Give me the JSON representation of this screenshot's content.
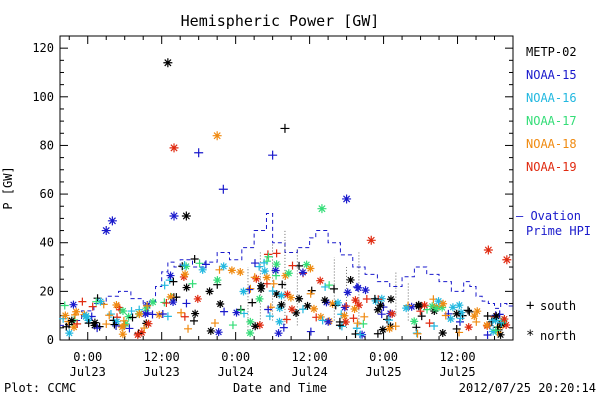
{
  "chart_data": {
    "type": "scatter",
    "title": "Hemispheric Power [GW]",
    "xlabel": "Date and Time",
    "ylabel": "P [GW]",
    "ylim": [
      0,
      125
    ],
    "y_ticks": [
      0,
      20,
      40,
      60,
      80,
      100,
      120
    ],
    "x_unit": "hours since Jul23 00:00",
    "xlim": [
      -4.5,
      69
    ],
    "x_ticks": [
      {
        "x": 0,
        "line1": "0:00",
        "line2": "Jul23"
      },
      {
        "x": 12,
        "line1": "12:00",
        "line2": "Jul23"
      },
      {
        "x": 24,
        "line1": "0:00",
        "line2": "Jul24"
      },
      {
        "x": 36,
        "line1": "12:00",
        "line2": "Jul24"
      },
      {
        "x": 48,
        "line1": "0:00",
        "line2": "Jul25"
      },
      {
        "x": 60,
        "line1": "12:00",
        "line2": "Jul25"
      }
    ],
    "legend_position": "right",
    "series": [
      {
        "name": "METP-02",
        "color": "#000000"
      },
      {
        "name": "NOAA-15",
        "color": "#1a1acc"
      },
      {
        "name": "NOAA-16",
        "color": "#22b8e0"
      },
      {
        "name": "NOAA-17",
        "color": "#33dd77"
      },
      {
        "name": "NOAA-18",
        "color": "#f08a10"
      },
      {
        "name": "NOAA-19",
        "color": "#e02a10"
      }
    ],
    "ovation": {
      "label_line1": "– Ovation",
      "label_line2": "Prime HPI",
      "color": "#1a1acc",
      "steps": [
        [
          -4.5,
          6
        ],
        [
          -3,
          8
        ],
        [
          -1,
          12
        ],
        [
          1,
          15
        ],
        [
          3,
          18
        ],
        [
          5,
          20
        ],
        [
          7,
          17
        ],
        [
          9,
          14
        ],
        [
          10,
          16
        ],
        [
          11,
          22
        ],
        [
          12,
          28
        ],
        [
          13,
          32
        ],
        [
          14,
          30
        ],
        [
          15,
          33
        ],
        [
          17,
          30
        ],
        [
          19,
          32
        ],
        [
          21,
          36
        ],
        [
          23,
          33
        ],
        [
          25,
          38
        ],
        [
          27,
          45
        ],
        [
          29,
          52
        ],
        [
          30,
          40
        ],
        [
          32,
          36
        ],
        [
          34,
          38
        ],
        [
          36,
          42
        ],
        [
          37,
          45
        ],
        [
          39,
          40
        ],
        [
          41,
          35
        ],
        [
          43,
          30
        ],
        [
          45,
          27
        ],
        [
          47,
          24
        ],
        [
          49,
          22
        ],
        [
          51,
          26
        ],
        [
          53,
          30
        ],
        [
          55,
          27
        ],
        [
          57,
          24
        ],
        [
          59,
          20
        ],
        [
          61,
          24
        ],
        [
          62,
          22
        ],
        [
          63,
          18
        ],
        [
          64,
          16
        ],
        [
          65,
          15
        ],
        [
          66,
          13
        ],
        [
          67,
          15
        ],
        [
          68,
          14
        ],
        [
          69,
          14
        ]
      ]
    },
    "notable_points": [
      {
        "x": 13,
        "y": 114,
        "symbol": "*",
        "series": "METP-02"
      },
      {
        "x": 32,
        "y": 87,
        "symbol": "+",
        "series": "METP-02"
      },
      {
        "x": 30,
        "y": 76,
        "symbol": "+",
        "series": "NOAA-15"
      },
      {
        "x": 18,
        "y": 77,
        "symbol": "+",
        "series": "NOAA-15"
      },
      {
        "x": 14,
        "y": 79,
        "symbol": "*",
        "series": "NOAA-19"
      },
      {
        "x": 21,
        "y": 84,
        "symbol": "*",
        "series": "NOAA-18"
      },
      {
        "x": 22,
        "y": 62,
        "symbol": "+",
        "series": "NOAA-15"
      },
      {
        "x": 42,
        "y": 58,
        "symbol": "*",
        "series": "NOAA-15"
      },
      {
        "x": 38,
        "y": 54,
        "symbol": "*",
        "series": "NOAA-17"
      },
      {
        "x": 14,
        "y": 51,
        "symbol": "*",
        "series": "NOAA-15"
      },
      {
        "x": 16,
        "y": 51,
        "symbol": "*",
        "series": "METP-02"
      },
      {
        "x": 4,
        "y": 49,
        "symbol": "*",
        "series": "NOAA-15"
      },
      {
        "x": 3,
        "y": 45,
        "symbol": "*",
        "series": "NOAA-15"
      },
      {
        "x": 46,
        "y": 41,
        "symbol": "*",
        "series": "NOAA-19"
      },
      {
        "x": 65,
        "y": 37,
        "symbol": "*",
        "series": "NOAA-19"
      },
      {
        "x": 68,
        "y": 33,
        "symbol": "*",
        "series": "NOAA-19"
      }
    ],
    "cloud": {
      "x_start": -4,
      "x_end": 68.5,
      "count": 300,
      "seed": 7,
      "envelope": [
        [
          -4,
          12
        ],
        [
          0,
          18
        ],
        [
          4,
          15
        ],
        [
          8,
          10
        ],
        [
          11,
          15
        ],
        [
          14,
          28
        ],
        [
          18,
          32
        ],
        [
          24,
          28
        ],
        [
          30,
          35
        ],
        [
          34,
          30
        ],
        [
          38,
          28
        ],
        [
          42,
          25
        ],
        [
          46,
          18
        ],
        [
          50,
          15
        ],
        [
          54,
          16
        ],
        [
          58,
          14
        ],
        [
          62,
          12
        ],
        [
          66,
          9
        ],
        [
          68.5,
          8
        ]
      ]
    },
    "legend_symbols": [
      {
        "symbol": "+",
        "label": "south"
      },
      {
        "symbol": "*",
        "label": "north"
      }
    ]
  },
  "footer": {
    "plot_credit": "Plot: CCMC",
    "timestamp": "2012/07/25 20:20:14"
  }
}
